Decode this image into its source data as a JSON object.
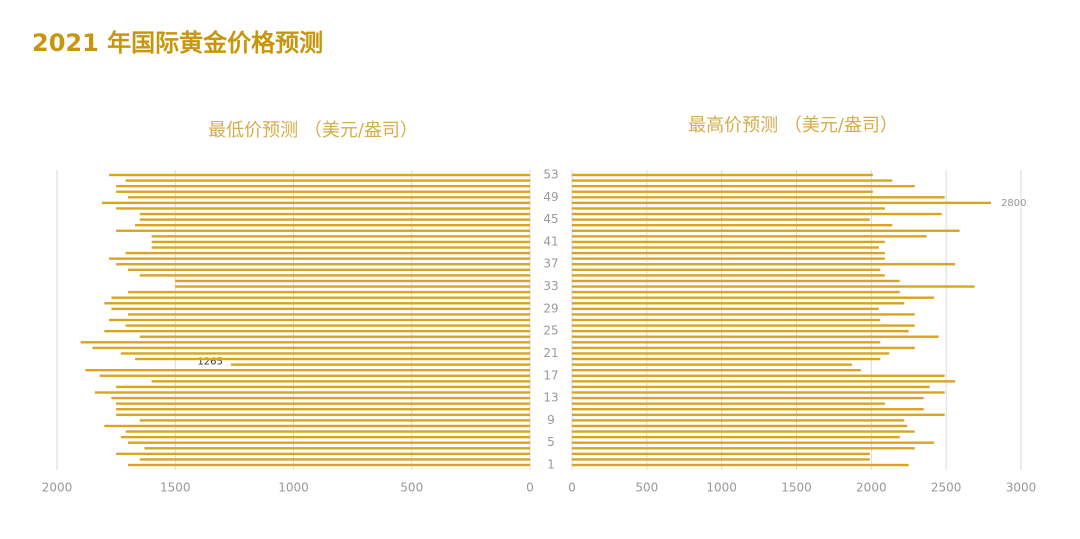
{
  "title": "2021 年国际黄金价格预测",
  "chart_data": [
    {
      "type": "bar",
      "orientation": "horizontal",
      "title": "最低价预测 （美元/盎司）",
      "categories": [
        1,
        null,
        null,
        null,
        5,
        null,
        null,
        null,
        9,
        null,
        null,
        null,
        13,
        null,
        null,
        null,
        17,
        null,
        null,
        null,
        21,
        null,
        null,
        null,
        25,
        null,
        null,
        null,
        29,
        null,
        null,
        null,
        33,
        null,
        null,
        null,
        37,
        null,
        null,
        null,
        41,
        null,
        null,
        null,
        45,
        null,
        null,
        null,
        49,
        null,
        null,
        null,
        53
      ],
      "values": [
        1700,
        1650,
        1750,
        1630,
        1700,
        1730,
        1710,
        1800,
        1650,
        1750,
        1750,
        1750,
        1770,
        1840,
        1750,
        1600,
        1820,
        1880,
        1265,
        1670,
        1730,
        1850,
        1900,
        1650,
        1800,
        1710,
        1780,
        1700,
        1770,
        1800,
        1770,
        1700,
        1500,
        1500,
        1650,
        1700,
        1750,
        1780,
        1710,
        1600,
        1600,
        1600,
        1750,
        1670,
        1650,
        1650,
        1750,
        1810,
        1700,
        1750,
        1750,
        1710,
        1780
      ],
      "value_labels": [
        null,
        null,
        null,
        null,
        null,
        null,
        null,
        null,
        null,
        null,
        null,
        null,
        null,
        null,
        null,
        null,
        null,
        null,
        "1265",
        null,
        null,
        null,
        null,
        null,
        null,
        null,
        null,
        null,
        null,
        null,
        null,
        null,
        null,
        null,
        null,
        null,
        null,
        null,
        null,
        null,
        null,
        null,
        null,
        null,
        null,
        null,
        null,
        null,
        null,
        null,
        null,
        null,
        null
      ],
      "color": "#d9a521",
      "xlim": [
        0,
        2000
      ],
      "xticks": [
        0,
        500,
        1000,
        1500,
        2000
      ],
      "x_reversed": true,
      "grid": true
    },
    {
      "type": "bar",
      "orientation": "horizontal",
      "title": "最高价预测 （美元/盎司）",
      "values": [
        2250,
        1990,
        1990,
        2290,
        2420,
        2190,
        2290,
        2240,
        2220,
        2490,
        2350,
        2090,
        2350,
        2490,
        2390,
        2560,
        2490,
        1930,
        1870,
        2060,
        2120,
        2290,
        2060,
        2450,
        2250,
        2290,
        2060,
        2290,
        2050,
        2220,
        2420,
        2190,
        2690,
        2190,
        2090,
        2060,
        2560,
        2090,
        2090,
        2050,
        2090,
        2370,
        2590,
        2140,
        1990,
        2470,
        2090,
        2800,
        2490,
        2010,
        2290,
        2140,
        2010
      ],
      "value_labels": [
        null,
        null,
        null,
        null,
        null,
        null,
        null,
        null,
        null,
        null,
        null,
        null,
        null,
        null,
        null,
        null,
        null,
        null,
        null,
        null,
        null,
        null,
        null,
        null,
        null,
        null,
        null,
        null,
        null,
        null,
        null,
        null,
        null,
        null,
        null,
        null,
        null,
        null,
        null,
        null,
        null,
        null,
        null,
        null,
        null,
        null,
        null,
        "2800",
        null,
        null,
        null,
        null,
        null
      ],
      "color": "#d9a521",
      "xlim": [
        0,
        3000
      ],
      "xticks": [
        0,
        500,
        1000,
        1500,
        2000,
        2500,
        3000
      ],
      "x_reversed": false,
      "grid": true
    }
  ]
}
